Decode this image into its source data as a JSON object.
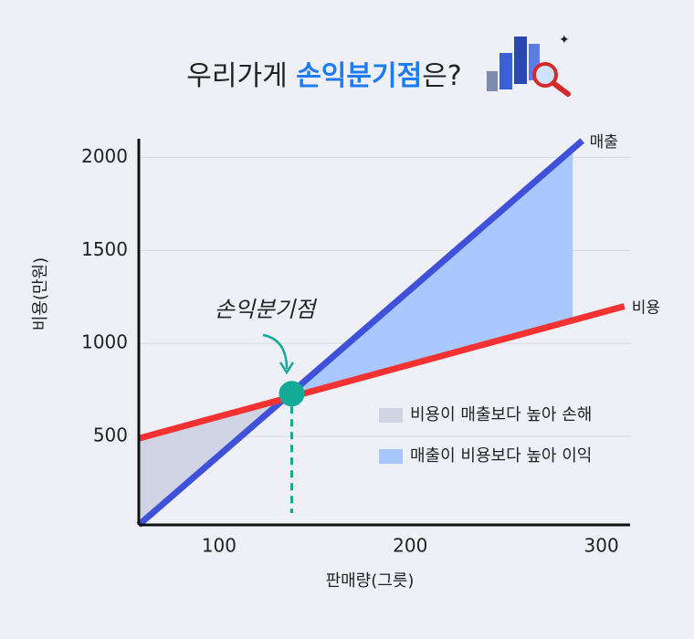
{
  "chart_data": {
    "type": "line",
    "title": [
      "우리가게 ",
      "손익분기점",
      "은?"
    ],
    "x_label": "판매량(그릇)",
    "y_label": "비용(만원)",
    "xlim": [
      58,
      315
    ],
    "xticks": [
      100,
      200,
      300
    ],
    "ylim": [
      25,
      2100
    ],
    "yticks": [
      500,
      1000,
      1500,
      2000
    ],
    "grid": true,
    "series": [
      {
        "name": "매출",
        "color": "#3f51d8",
        "x": [
          58,
          290
        ],
        "values": [
          25,
          2090
        ]
      },
      {
        "name": "비용",
        "color": "#f53232",
        "x": [
          58,
          312
        ],
        "values": [
          490,
          1200
        ]
      }
    ],
    "areas": [
      {
        "name": "비용이 매출보다 높아 손해",
        "color": "#cfd3e3",
        "x": [
          58,
          138
        ]
      },
      {
        "name": "매출이 비용보다 높아 이익",
        "color": "#a8c8ff",
        "x": [
          138,
          285
        ]
      }
    ],
    "break_even": {
      "label": "손익분기점",
      "x": 138,
      "y": 730,
      "color": "#13aa96"
    }
  }
}
